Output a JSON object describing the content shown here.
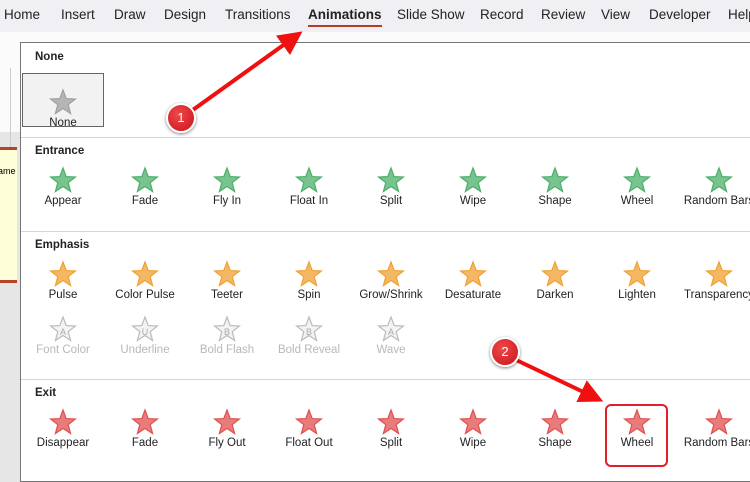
{
  "ribbon_tabs": [
    "Home",
    "Insert",
    "Draw",
    "Design",
    "Transitions",
    "Animations",
    "Slide Show",
    "Record",
    "Review",
    "View",
    "Developer",
    "Help"
  ],
  "active_tab": "Animations",
  "slide_text": "ame",
  "sections": [
    {
      "title": "None",
      "items": [
        {
          "label": "None",
          "color": "#a0a0a0"
        }
      ]
    },
    {
      "title": "Entrance",
      "items": [
        {
          "label": "Appear",
          "color": "#4caf6a"
        },
        {
          "label": "Fade",
          "color": "#4caf6a"
        },
        {
          "label": "Fly In",
          "color": "#4caf6a"
        },
        {
          "label": "Float In",
          "color": "#4caf6a"
        },
        {
          "label": "Split",
          "color": "#4caf6a"
        },
        {
          "label": "Wipe",
          "color": "#4caf6a"
        },
        {
          "label": "Shape",
          "color": "#4caf6a"
        },
        {
          "label": "Wheel",
          "color": "#4caf6a"
        },
        {
          "label": "Random Bars",
          "color": "#4caf6a"
        }
      ]
    },
    {
      "title": "Emphasis",
      "items": [
        {
          "label": "Pulse",
          "color": "#f0a030"
        },
        {
          "label": "Color Pulse",
          "color": "#f0a030"
        },
        {
          "label": "Teeter",
          "color": "#f0a030"
        },
        {
          "label": "Spin",
          "color": "#f0a030"
        },
        {
          "label": "Grow/Shrink",
          "color": "#f0a030"
        },
        {
          "label": "Desaturate",
          "color": "#f0a030"
        },
        {
          "label": "Darken",
          "color": "#f0a030"
        },
        {
          "label": "Lighten",
          "color": "#f0a030"
        },
        {
          "label": "Transparency",
          "color": "#f0a030"
        }
      ],
      "disabled_items": [
        {
          "label": "Font Color",
          "glyph": "A"
        },
        {
          "label": "Underline",
          "glyph": "U"
        },
        {
          "label": "Bold Flash",
          "glyph": "B"
        },
        {
          "label": "Bold Reveal",
          "glyph": "B"
        },
        {
          "label": "Wave",
          "glyph": "A"
        }
      ]
    },
    {
      "title": "Exit",
      "items": [
        {
          "label": "Disappear",
          "color": "#e05050"
        },
        {
          "label": "Fade",
          "color": "#e05050"
        },
        {
          "label": "Fly Out",
          "color": "#e05050"
        },
        {
          "label": "Float Out",
          "color": "#e05050"
        },
        {
          "label": "Split",
          "color": "#e05050"
        },
        {
          "label": "Wipe",
          "color": "#e05050"
        },
        {
          "label": "Shape",
          "color": "#e05050"
        },
        {
          "label": "Wheel",
          "color": "#e05050"
        },
        {
          "label": "Random Bars",
          "color": "#e05050"
        }
      ]
    }
  ],
  "highlighted_item": "Exit / Wheel",
  "callouts": [
    "1",
    "2"
  ],
  "callout_color": "#e0202a"
}
